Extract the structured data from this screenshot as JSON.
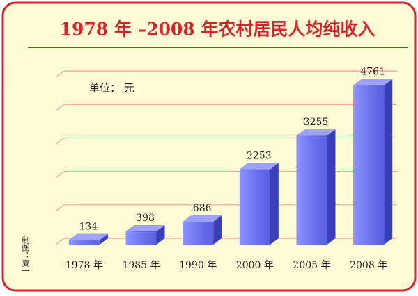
{
  "chart_data": {
    "type": "bar",
    "title": "1978 年 –2008 年农村居民人均纯收入",
    "unit_note": "单位： 元",
    "credit": "制图：夏一",
    "categories": [
      "1978 年",
      "1985 年",
      "1990 年",
      "2000 年",
      "2005 年",
      "2008 年"
    ],
    "values": [
      134,
      398,
      686,
      2253,
      3255,
      4761
    ],
    "color": "#6f74f0",
    "ylim": [
      0,
      5500
    ],
    "yticks": [
      0,
      1000,
      2000,
      3000,
      4000,
      5000
    ],
    "grid": true
  }
}
